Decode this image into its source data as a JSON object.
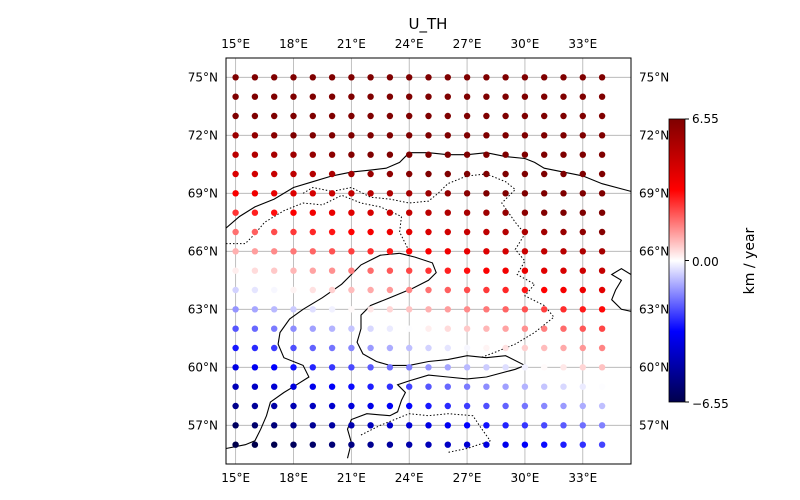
{
  "title": "U_TH",
  "map": {
    "lon_range": [
      14.5,
      35.5
    ],
    "lat_range": [
      55,
      76
    ],
    "lon_ticks": [
      15,
      18,
      21,
      24,
      27,
      30,
      33
    ],
    "lat_ticks": [
      57,
      60,
      63,
      66,
      69,
      72,
      75
    ],
    "lon_tick_labels": [
      "15°E",
      "18°E",
      "21°E",
      "24°E",
      "27°E",
      "30°E",
      "33°E"
    ],
    "lat_tick_labels": [
      "57°N",
      "60°N",
      "63°N",
      "66°N",
      "69°N",
      "72°N",
      "75°N"
    ],
    "grid": true,
    "point_lons_start": 15,
    "point_lons_step": 1,
    "point_lons_count": 20,
    "point_lats_start": 56,
    "point_lats_step": 1,
    "point_lats_count": 20
  },
  "colorbar": {
    "label": "km / year",
    "min": -6.55,
    "max": 6.55,
    "tick_labels": [
      "6.55",
      "0.00",
      "−6.55"
    ],
    "colormap": "seismic",
    "colors": [
      "#00004c",
      "#0000ff",
      "#ffffff",
      "#ff0000",
      "#7f0000"
    ]
  },
  "coastlines": {
    "norway_sweden": [
      [
        14.5,
        67.2
      ],
      [
        15.2,
        67.8
      ],
      [
        16,
        68.3
      ],
      [
        17,
        68.7
      ],
      [
        18,
        69.3
      ],
      [
        19,
        69.6
      ],
      [
        20,
        69.9
      ],
      [
        21,
        70.1
      ],
      [
        22,
        70.2
      ],
      [
        22.8,
        70.3
      ],
      [
        23.5,
        70.6
      ],
      [
        24,
        71.1
      ],
      [
        25,
        71.1
      ],
      [
        26,
        71.0
      ],
      [
        27,
        71.0
      ],
      [
        28,
        71.1
      ],
      [
        29,
        70.9
      ],
      [
        30,
        70.8
      ],
      [
        30.5,
        70.6
      ],
      [
        31,
        70.3
      ],
      [
        32,
        70.1
      ],
      [
        33,
        69.9
      ],
      [
        34,
        69.5
      ],
      [
        35.5,
        69.1
      ]
    ],
    "gulf_of_bothnia": [
      [
        23.5,
        65.9
      ],
      [
        24.3,
        65.7
      ],
      [
        25.2,
        65.4
      ],
      [
        25.4,
        64.9
      ],
      [
        25,
        64.5
      ],
      [
        24.2,
        64.1
      ],
      [
        23,
        63.6
      ],
      [
        22,
        63.2
      ],
      [
        21.5,
        62.7
      ],
      [
        21.5,
        62
      ],
      [
        21.3,
        61.3
      ],
      [
        21.6,
        60.7
      ],
      [
        22.3,
        60.3
      ],
      [
        23,
        60.1
      ],
      [
        24,
        60.1
      ],
      [
        25,
        60.3
      ],
      [
        26,
        60.4
      ],
      [
        27,
        60.6
      ],
      [
        28,
        60.5
      ],
      [
        29,
        60.6
      ],
      [
        30,
        60.1
      ],
      [
        29.5,
        59.9
      ],
      [
        28,
        59.5
      ],
      [
        27,
        59.4
      ],
      [
        26,
        59.5
      ],
      [
        25,
        59.6
      ],
      [
        24,
        59.3
      ],
      [
        23.4,
        59.1
      ],
      [
        23.8,
        58.7
      ],
      [
        23.6,
        58.3
      ],
      [
        23.4,
        57.7
      ],
      [
        23,
        57.5
      ],
      [
        21.8,
        57.6
      ],
      [
        21,
        57.3
      ],
      [
        20.8,
        56.8
      ],
      [
        21,
        56.1
      ],
      [
        20.8,
        55.3
      ]
    ],
    "sweden_east": [
      [
        23.5,
        65.9
      ],
      [
        22.5,
        65.8
      ],
      [
        21.5,
        65.3
      ],
      [
        21,
        64.8
      ],
      [
        20.5,
        64.3
      ],
      [
        19.5,
        63.6
      ],
      [
        18.5,
        63.0
      ],
      [
        17.8,
        62.5
      ],
      [
        17.3,
        61.8
      ],
      [
        17.2,
        61.2
      ],
      [
        17.5,
        60.5
      ],
      [
        18.5,
        60.1
      ],
      [
        18.8,
        59.5
      ],
      [
        18,
        59
      ],
      [
        17.5,
        58.7
      ],
      [
        16.8,
        58.2
      ],
      [
        16.6,
        57.5
      ],
      [
        16.3,
        56.8
      ],
      [
        16,
        56.2
      ],
      [
        15.5,
        56.0
      ],
      [
        14.5,
        55.8
      ]
    ],
    "russia_white_sea": [
      [
        35.5,
        64.8
      ],
      [
        35,
        65.1
      ],
      [
        34.5,
        64.8
      ],
      [
        35,
        64.5
      ],
      [
        34.7,
        64.0
      ],
      [
        34.5,
        63.5
      ],
      [
        35,
        63.0
      ],
      [
        35.5,
        62.9
      ]
    ],
    "finland_dotted": [
      [
        18.5,
        69.0
      ],
      [
        19,
        69.3
      ],
      [
        20,
        69.1
      ],
      [
        21,
        69.3
      ],
      [
        22,
        68.8
      ],
      [
        23,
        68.7
      ],
      [
        24,
        68.5
      ],
      [
        25,
        68.6
      ],
      [
        25.5,
        69.0
      ],
      [
        26,
        69.5
      ],
      [
        27,
        69.9
      ],
      [
        28,
        70.0
      ],
      [
        29,
        69.6
      ],
      [
        29.5,
        69.2
      ],
      [
        28.8,
        68.5
      ],
      [
        29.5,
        67.5
      ],
      [
        30,
        66.9
      ],
      [
        29.5,
        66.1
      ],
      [
        30,
        65.5
      ],
      [
        29.6,
        64.8
      ],
      [
        30.5,
        64.3
      ],
      [
        30,
        63.7
      ],
      [
        31,
        63.2
      ],
      [
        31.5,
        62.6
      ],
      [
        30.5,
        61.8
      ],
      [
        29.5,
        61.2
      ],
      [
        28.5,
        60.8
      ],
      [
        27.7,
        60.5
      ]
    ],
    "sweden_finland_dotted": [
      [
        14.5,
        66.4
      ],
      [
        15.5,
        66.4
      ],
      [
        16,
        66.9
      ],
      [
        16.5,
        67.5
      ],
      [
        17.5,
        68.1
      ],
      [
        18.5,
        68.5
      ],
      [
        19.5,
        68.4
      ],
      [
        20.5,
        68.9
      ],
      [
        21.5,
        68.5
      ],
      [
        22.5,
        68.3
      ],
      [
        23.6,
        67.8
      ],
      [
        23.5,
        67.0
      ],
      [
        24.0,
        66.0
      ]
    ],
    "estonia_latvia_dotted": [
      [
        21.5,
        56.5
      ],
      [
        22.5,
        57.0
      ],
      [
        24,
        57.6
      ],
      [
        25,
        57.5
      ],
      [
        26,
        57.6
      ],
      [
        27.3,
        57.5
      ],
      [
        27.7,
        56.9
      ],
      [
        28.2,
        56.2
      ],
      [
        27,
        55.8
      ],
      [
        26,
        55.6
      ]
    ]
  }
}
